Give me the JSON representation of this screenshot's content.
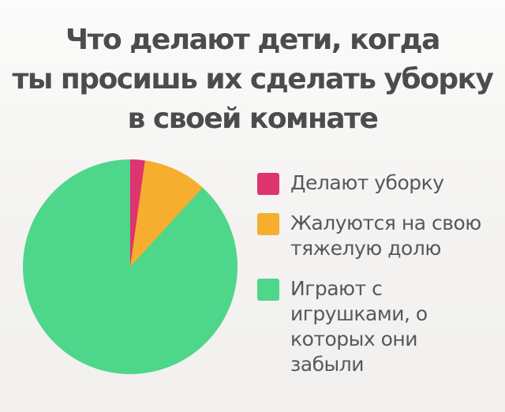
{
  "title_lines": [
    "Что делают дети, когда",
    "ты просишь их сделать уборку",
    "в своей комнате"
  ],
  "chart_data": {
    "type": "pie",
    "title": "Что делают дети, когда ты просишь их сделать уборку в своей комнате",
    "slices": [
      {
        "label": "Делают уборку",
        "value": 2.2,
        "color": "#de346f"
      },
      {
        "label": "Жалуются на свою тяжелую долю",
        "value": 9.6,
        "color": "#f5ae2e"
      },
      {
        "label": "Играют с игрушками, о которых они забыли",
        "value": 88.2,
        "color": "#4ed68b"
      }
    ],
    "start_angle_deg": 0,
    "direction": "clockwise",
    "legend_position": "right",
    "data_labels": false,
    "background_color": "#f4f3f1",
    "title_color": "#4b4c4e",
    "legend_text_color": "#57585a"
  }
}
